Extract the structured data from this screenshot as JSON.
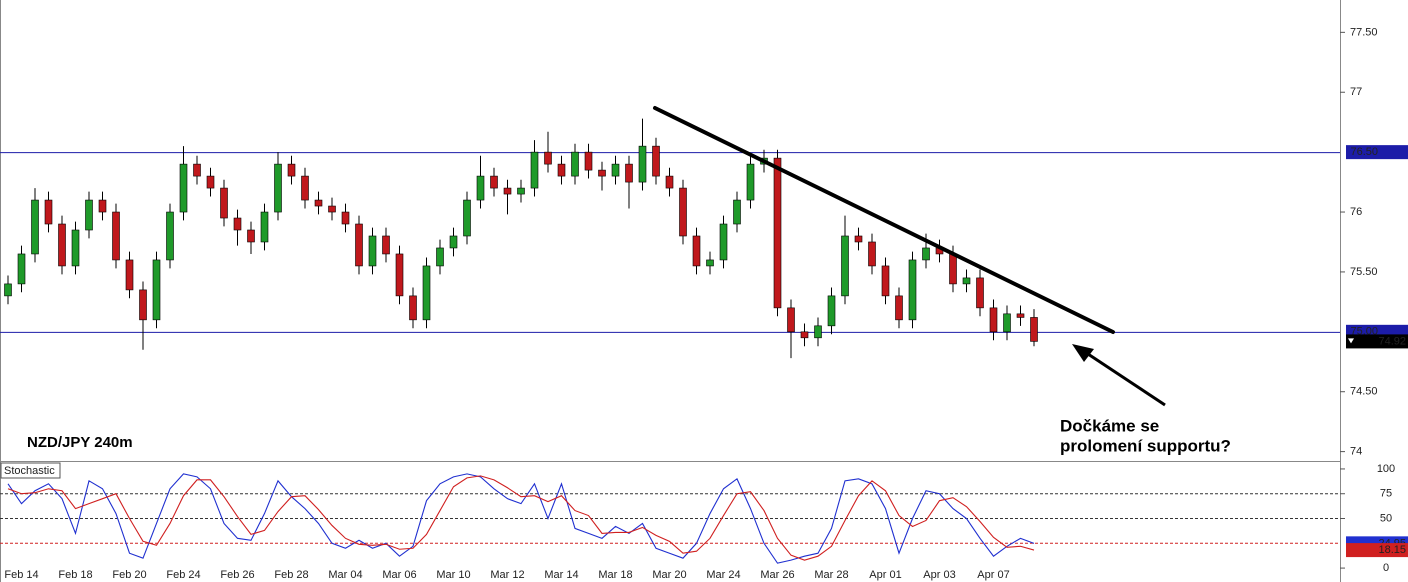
{
  "chart_data": [
    {
      "type": "candlestick",
      "title": "NZD/JPY 240m",
      "categories": [
        null,
        "Feb 14",
        null,
        null,
        null,
        "Feb 18",
        null,
        null,
        null,
        "Feb 20",
        null,
        null,
        null,
        "Feb 24",
        null,
        null,
        null,
        "Feb 26",
        null,
        null,
        null,
        "Feb 28",
        null,
        null,
        null,
        "Mar 04",
        null,
        null,
        null,
        "Mar 06",
        null,
        null,
        null,
        "Mar 10",
        null,
        null,
        null,
        "Mar 12",
        null,
        null,
        null,
        "Mar 14",
        null,
        null,
        null,
        "Mar 18",
        null,
        null,
        null,
        "Mar 20",
        null,
        null,
        null,
        "Mar 24",
        null,
        null,
        null,
        "Mar 26",
        null,
        null,
        null,
        "Mar 28",
        null,
        null,
        null,
        "Apr 01",
        null,
        null,
        null,
        "Apr 03",
        null,
        null,
        null,
        "Apr 07",
        null,
        null,
        null
      ],
      "open": [
        75.3,
        75.4,
        75.65,
        76.1,
        75.9,
        75.55,
        75.85,
        76.1,
        76.0,
        75.6,
        75.35,
        75.1,
        75.6,
        76.0,
        76.4,
        76.3,
        76.2,
        75.95,
        75.85,
        75.75,
        76.0,
        76.4,
        76.3,
        76.1,
        76.05,
        76.0,
        75.9,
        75.55,
        75.8,
        75.65,
        75.3,
        75.1,
        75.55,
        75.7,
        75.8,
        76.1,
        76.3,
        76.2,
        76.15,
        76.2,
        76.5,
        76.4,
        76.3,
        76.5,
        76.35,
        76.3,
        76.4,
        76.25,
        76.55,
        76.3,
        76.2,
        75.8,
        75.55,
        75.6,
        75.9,
        76.1,
        76.4,
        76.45,
        75.2,
        75.0,
        74.95,
        75.05,
        75.3,
        75.8,
        75.75,
        75.55,
        75.3,
        75.1,
        75.6,
        75.7,
        75.65,
        75.4,
        75.45,
        75.2,
        75.0,
        75.15,
        75.12
      ],
      "high": [
        75.47,
        75.72,
        76.2,
        76.17,
        75.97,
        75.92,
        76.17,
        76.17,
        76.07,
        75.67,
        75.42,
        75.67,
        76.07,
        76.55,
        76.47,
        76.37,
        76.27,
        76.02,
        75.92,
        76.07,
        76.5,
        76.47,
        76.37,
        76.17,
        76.12,
        76.07,
        75.97,
        75.87,
        75.87,
        75.72,
        75.37,
        75.62,
        75.77,
        75.87,
        76.17,
        76.47,
        76.37,
        76.27,
        76.27,
        76.6,
        76.67,
        76.47,
        76.57,
        76.57,
        76.42,
        76.47,
        76.47,
        76.78,
        76.62,
        76.37,
        76.27,
        75.87,
        75.67,
        75.97,
        76.17,
        76.47,
        76.52,
        76.52,
        75.27,
        75.07,
        75.12,
        75.37,
        75.97,
        75.87,
        75.82,
        75.62,
        75.37,
        75.67,
        75.82,
        75.77,
        75.72,
        75.52,
        75.52,
        75.27,
        75.22,
        75.22,
        75.19
      ],
      "low": [
        75.23,
        75.33,
        75.58,
        75.83,
        75.48,
        75.48,
        75.78,
        75.93,
        75.53,
        75.28,
        74.85,
        75.03,
        75.53,
        75.93,
        76.23,
        76.13,
        75.88,
        75.72,
        75.65,
        75.68,
        75.93,
        76.23,
        76.03,
        75.98,
        75.93,
        75.83,
        75.48,
        75.48,
        75.58,
        75.23,
        75.03,
        75.03,
        75.48,
        75.63,
        75.73,
        76.03,
        76.13,
        75.98,
        76.08,
        76.13,
        76.33,
        76.23,
        76.23,
        76.28,
        76.18,
        76.23,
        76.03,
        76.18,
        76.23,
        76.13,
        75.73,
        75.48,
        75.48,
        75.53,
        75.83,
        76.03,
        76.33,
        75.13,
        74.78,
        74.88,
        74.88,
        74.98,
        75.23,
        75.68,
        75.48,
        75.23,
        75.03,
        75.03,
        75.53,
        75.58,
        75.33,
        75.33,
        75.13,
        74.93,
        74.93,
        75.05,
        74.88
      ],
      "close": [
        75.4,
        75.65,
        76.1,
        75.9,
        75.55,
        75.85,
        76.1,
        76.0,
        75.6,
        75.35,
        75.1,
        75.6,
        76.0,
        76.4,
        76.3,
        76.2,
        75.95,
        75.85,
        75.75,
        76.0,
        76.4,
        76.3,
        76.1,
        76.05,
        76.0,
        75.9,
        75.55,
        75.8,
        75.65,
        75.3,
        75.1,
        75.55,
        75.7,
        75.8,
        76.1,
        76.3,
        76.2,
        76.15,
        76.2,
        76.5,
        76.4,
        76.3,
        76.5,
        76.35,
        76.3,
        76.4,
        76.25,
        76.55,
        76.3,
        76.2,
        75.8,
        75.55,
        75.6,
        75.9,
        76.1,
        76.4,
        76.45,
        75.2,
        75.0,
        74.95,
        75.05,
        75.3,
        75.8,
        75.75,
        75.55,
        75.3,
        75.1,
        75.6,
        75.7,
        75.65,
        75.4,
        75.45,
        75.2,
        75.0,
        75.15,
        75.12,
        74.92
      ],
      "up_color": "#1f9a2a",
      "down_color": "#c0181c",
      "ylim": [
        73.93,
        77.77
      ],
      "yticks": [
        {
          "value": 77.5,
          "label": "77.50"
        },
        77,
        76,
        {
          "value": 75.5,
          "label": "75.50"
        },
        {
          "value": 74.5,
          "label": "74.50"
        },
        74
      ],
      "levels": [
        {
          "value": 76.5,
          "label": "76.50",
          "color": "#1c1ca8"
        },
        {
          "value": 75,
          "label": "75.00",
          "color": "#1c1ca8"
        }
      ],
      "annotation": [
        "Dočkáme se",
        "prolomení supportu?"
      ]
    },
    {
      "type": "line",
      "title": "Stochastic",
      "series": [
        {
          "color": "#2030d0",
          "values": [
            85,
            65,
            78,
            85,
            70,
            35,
            88,
            80,
            55,
            15,
            10,
            45,
            80,
            95,
            92,
            80,
            45,
            30,
            28,
            55,
            88,
            72,
            60,
            45,
            25,
            20,
            28,
            20,
            25,
            12,
            22,
            68,
            85,
            92,
            95,
            92,
            80,
            70,
            65,
            85,
            50,
            85,
            40,
            35,
            30,
            42,
            35,
            45,
            20,
            15,
            10,
            25,
            55,
            80,
            90,
            60,
            25,
            5,
            8,
            12,
            15,
            40,
            88,
            90,
            85,
            60,
            15,
            50,
            78,
            75,
            60,
            50,
            30,
            12,
            22,
            30,
            24.95
          ]
        },
        {
          "color": "#d02020",
          "values": [
            80,
            75,
            76,
            80,
            78,
            60,
            65,
            70,
            75,
            50,
            27,
            23,
            45,
            73,
            89,
            89,
            72,
            52,
            34,
            38,
            57,
            72,
            73,
            59,
            43,
            30,
            24,
            23,
            24,
            19,
            20,
            34,
            58,
            82,
            91,
            93,
            89,
            81,
            72,
            73,
            67,
            73,
            58,
            53,
            35,
            36,
            36,
            41,
            33,
            27,
            15,
            17,
            30,
            53,
            75,
            77,
            58,
            30,
            13,
            8,
            12,
            22,
            48,
            73,
            88,
            78,
            53,
            42,
            48,
            68,
            71,
            62,
            47,
            31,
            21,
            22,
            18.15
          ]
        }
      ],
      "ylim": [
        -10,
        107
      ],
      "yticks": [
        100,
        75,
        50,
        0
      ],
      "levels": [
        {
          "value": 75,
          "color": "#333333"
        },
        {
          "value": 50,
          "color": "#333333"
        },
        {
          "value": 25,
          "color": "#d02020"
        }
      ]
    }
  ]
}
